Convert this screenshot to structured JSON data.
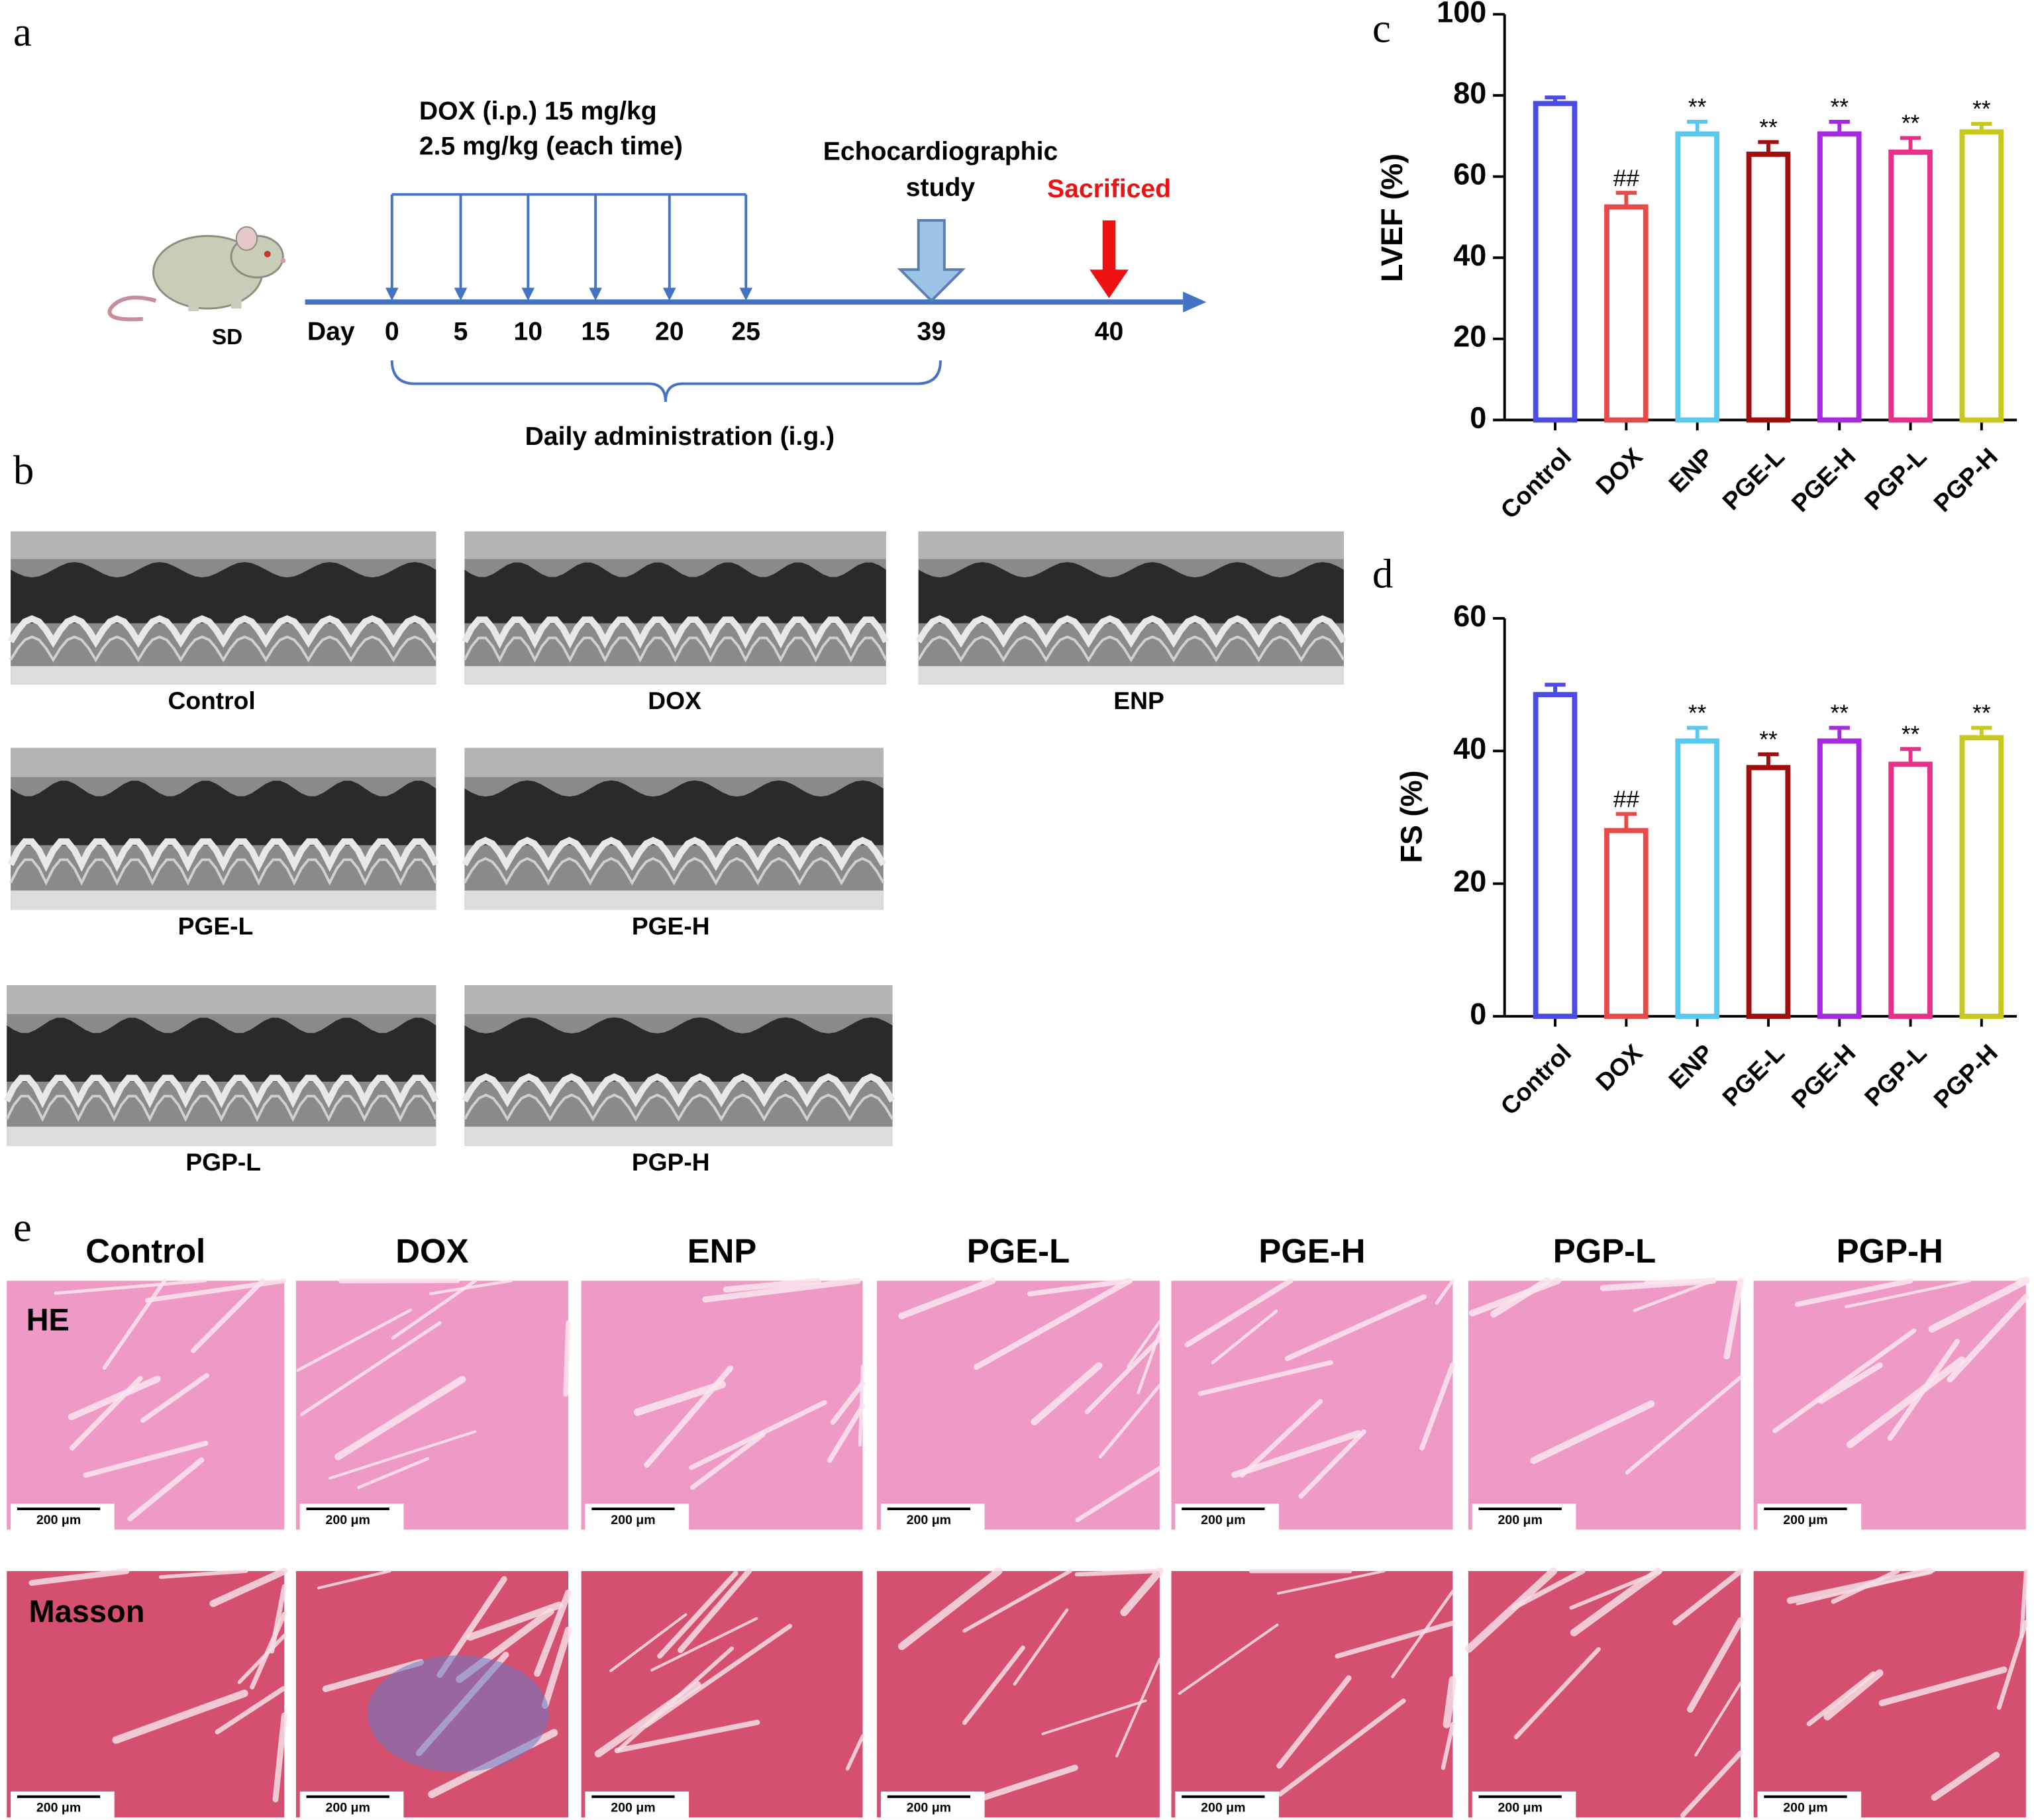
{
  "panel_labels": [
    "a",
    "b",
    "c",
    "d",
    "e"
  ],
  "timeline": {
    "dox_line1": "DOX (i.p.) 15 mg/kg",
    "dox_line2": "2.5 mg/kg (each time)",
    "echo_line1": "Echocardiographic",
    "echo_line2": "study",
    "sacrificed": "Sacrificed",
    "animal": "SD",
    "day_label": "Day",
    "days": [
      0,
      5,
      10,
      15,
      20,
      25,
      39,
      40
    ],
    "daily": "Daily administration (i.g.)"
  },
  "echo_panels": [
    "Control",
    "DOX",
    "ENP",
    "PGE-L",
    "PGE-H",
    "PGP-L",
    "PGP-H"
  ],
  "chart_data": [
    {
      "type": "bar",
      "y_label": "LVEF (%)",
      "categories": [
        "Control",
        "DOX",
        "ENP",
        "PGE-L",
        "PGE-H",
        "PGP-L",
        "PGP-H"
      ],
      "values": [
        78,
        52.5,
        70.5,
        65.5,
        70.5,
        66,
        71
      ],
      "errors": [
        1.5,
        3.5,
        3,
        3,
        3,
        3.5,
        2
      ],
      "annotations": [
        null,
        "##",
        "**",
        "**",
        "**",
        "**",
        "**"
      ],
      "colors": [
        "#4b4be6",
        "#e84a4a",
        "#5bc8f0",
        "#a00e0e",
        "#a52ae0",
        "#e8308a",
        "#c8c81e"
      ],
      "ylim": [
        0,
        100
      ],
      "yticks": [
        0,
        20,
        40,
        60,
        80,
        100
      ]
    },
    {
      "type": "bar",
      "y_label": "FS (%)",
      "categories": [
        "Control",
        "DOX",
        "ENP",
        "PGE-L",
        "PGE-H",
        "PGP-L",
        "PGP-H"
      ],
      "values": [
        48.5,
        28,
        41.5,
        37.5,
        41.5,
        38,
        42
      ],
      "errors": [
        1.5,
        2.5,
        2,
        2,
        2,
        2.3,
        1.5
      ],
      "annotations": [
        null,
        "##",
        "**",
        "**",
        "**",
        "**",
        "**"
      ],
      "colors": [
        "#4b4be6",
        "#e84a4a",
        "#5bc8f0",
        "#a00e0e",
        "#a52ae0",
        "#e8308a",
        "#c8c81e"
      ],
      "ylim": [
        0,
        60
      ],
      "yticks": [
        0,
        20,
        40,
        60
      ]
    }
  ],
  "histology": {
    "groups": [
      "Control",
      "DOX",
      "ENP",
      "PGE-L",
      "PGE-H",
      "PGP-L",
      "PGP-H"
    ],
    "stains": [
      "HE",
      "Masson"
    ],
    "scale_bar": "200 μm"
  }
}
